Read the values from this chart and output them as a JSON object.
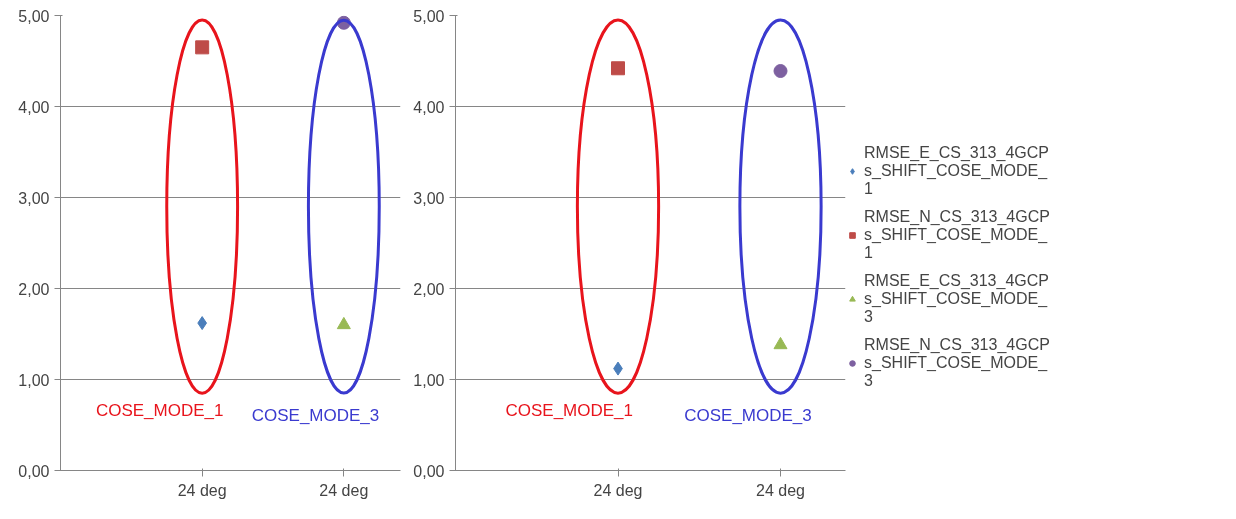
{
  "chart_data": [
    {
      "type": "scatter",
      "categories": [
        "24 deg",
        "24 deg"
      ],
      "ylim": [
        0,
        5
      ],
      "yticks": [
        {
          "value": 0,
          "label": "0,00"
        },
        {
          "value": 1,
          "label": "1,00"
        },
        {
          "value": 2,
          "label": "2,00"
        },
        {
          "value": 3,
          "label": "3,00"
        },
        {
          "value": 4,
          "label": "4,00"
        },
        {
          "value": 5,
          "label": "5,00"
        }
      ],
      "grid": "y",
      "legend": false,
      "annotations": [
        "COSE_MODE_1",
        "COSE_MODE_3"
      ],
      "series": [
        {
          "color": "#4a7ebb",
          "marker": "diamond",
          "values": [
            1.62,
            null
          ]
        },
        {
          "color": "#be4b48",
          "marker": "square",
          "values": [
            4.65,
            null
          ]
        },
        {
          "color": "#98b954",
          "marker": "triangle",
          "values": [
            null,
            1.6
          ]
        },
        {
          "color": "#7d60a0",
          "marker": "circle",
          "values": [
            null,
            4.92
          ]
        }
      ]
    },
    {
      "type": "scatter",
      "categories": [
        "24 deg",
        "24 deg"
      ],
      "ylim": [
        0,
        5
      ],
      "yticks": [
        {
          "value": 0,
          "label": "0,00"
        },
        {
          "value": 1,
          "label": "1,00"
        },
        {
          "value": 2,
          "label": "2,00"
        },
        {
          "value": 3,
          "label": "3,00"
        },
        {
          "value": 4,
          "label": "4,00"
        },
        {
          "value": 5,
          "label": "5,00"
        }
      ],
      "grid": "y",
      "legend": "right",
      "annotations": [
        "COSE_MODE_1",
        "COSE_MODE_3"
      ],
      "series": [
        {
          "name": "RMSE_E_CS_313_4GCPs_SHIFT_COSE_MODE_1",
          "color": "#4a7ebb",
          "marker": "diamond",
          "values": [
            1.12,
            null
          ]
        },
        {
          "name": "RMSE_N_CS_313_4GCPs_SHIFT_COSE_MODE_1",
          "color": "#be4b48",
          "marker": "square",
          "values": [
            4.42,
            null
          ]
        },
        {
          "name": "RMSE_E_CS_313_4GCPs_SHIFT_COSE_MODE_3",
          "color": "#98b954",
          "marker": "triangle",
          "values": [
            null,
            1.38
          ]
        },
        {
          "name": "RMSE_N_CS_313_4GCPs_SHIFT_COSE_MODE_3",
          "color": "#7d60a0",
          "marker": "circle",
          "values": [
            null,
            4.39
          ]
        }
      ]
    }
  ]
}
